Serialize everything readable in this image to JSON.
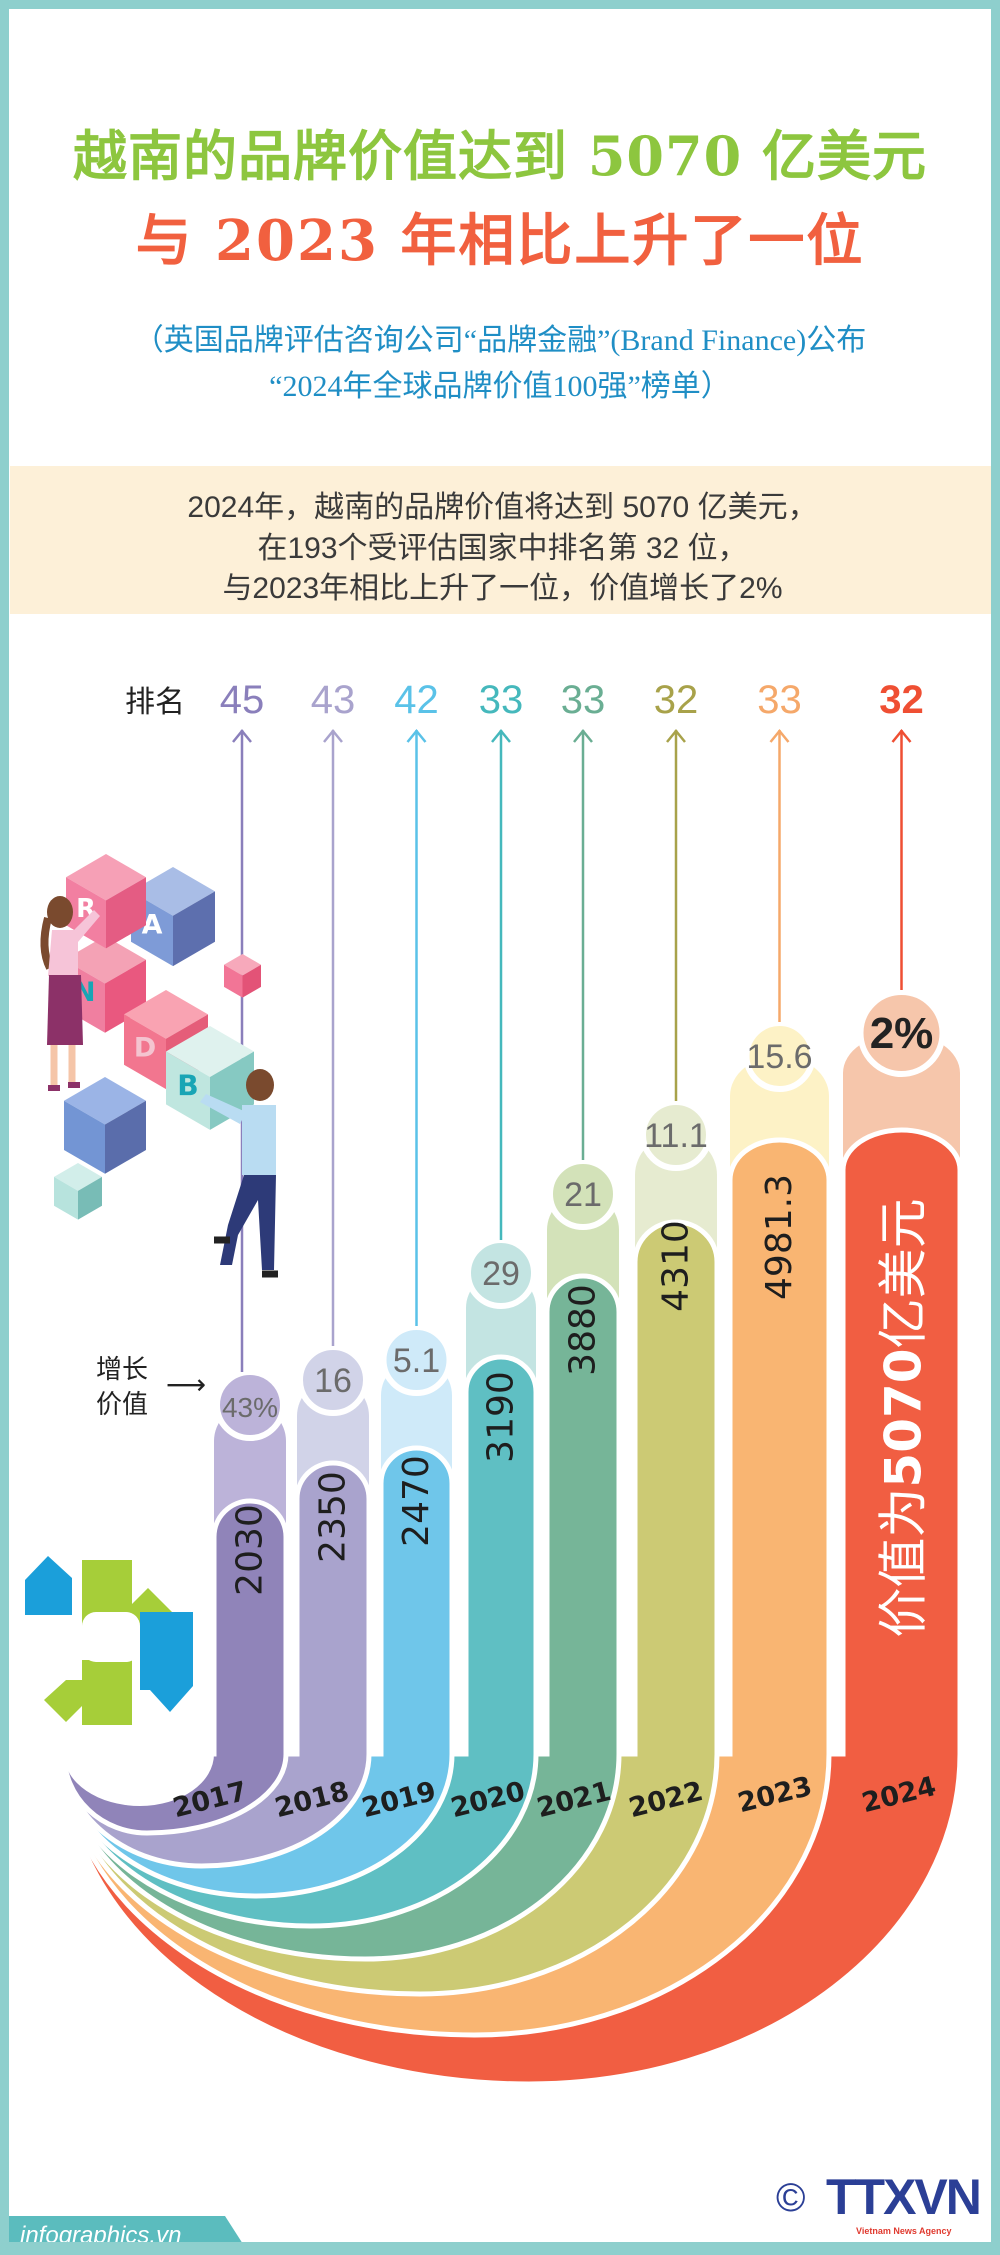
{
  "title": {
    "line1": "越南的品牌价值达到 5070 亿美元",
    "line2": "与 2023 年相比上升了一位"
  },
  "subtitle": {
    "line1": "（英国品牌评估咨询公司“品牌金融”(Brand Finance)公布",
    "line2": "“2024年全球品牌价值100强”榜单）"
  },
  "summary": {
    "lines": [
      "2024年，越南的品牌价值将达到 5070 亿美元，",
      "在193个受评估国家中排名第 32 位，",
      "与2023年相比上升了一位，价值增长了2%"
    ]
  },
  "labels": {
    "rank": "排名",
    "growth_line1": "增长",
    "growth_line2": "价值",
    "growth_arrow": "⟶",
    "final_prefix": "价值为",
    "final_value": "5070",
    "final_suffix": "亿美元"
  },
  "blocks": [
    "R",
    "A",
    "N",
    "D",
    "B"
  ],
  "chart_data": {
    "type": "bar",
    "categories": [
      "2017",
      "2018",
      "2019",
      "2020",
      "2021",
      "2022",
      "2023",
      "2024"
    ],
    "ranks": [
      "45",
      "43",
      "42",
      "33",
      "33",
      "32",
      "33",
      "32"
    ],
    "values": [
      "2030",
      "2350",
      "2470",
      "3190",
      "3880",
      "4310",
      "4981.3",
      "5070"
    ],
    "growth": [
      "43%",
      "16",
      "5.1",
      "29",
      "21",
      "11.1",
      "15.6",
      "2%"
    ],
    "colors": {
      "rank": [
        "#8a7fbb",
        "#a9a3cd",
        "#5ac2e8",
        "#45b8bc",
        "#6aae93",
        "#a8a24a",
        "#f5a86a",
        "#ef4f33"
      ],
      "light": [
        "#bcb3d9",
        "#d1d3e8",
        "#cfeaf9",
        "#c3e4e2",
        "#d3e2b9",
        "#e6ebd0",
        "#fdf2c6",
        "#f6c6ab"
      ],
      "dark": [
        "#9084b9",
        "#a9a3cd",
        "#6fc6ea",
        "#5fbfc3",
        "#76b598",
        "#ccca74",
        "#f9b572",
        "#f15e42"
      ]
    }
  },
  "footer": {
    "site": "infographics.vn",
    "copyright": "©",
    "agency": "TTXVN",
    "agency_sub": "Vietnam News Agency"
  }
}
